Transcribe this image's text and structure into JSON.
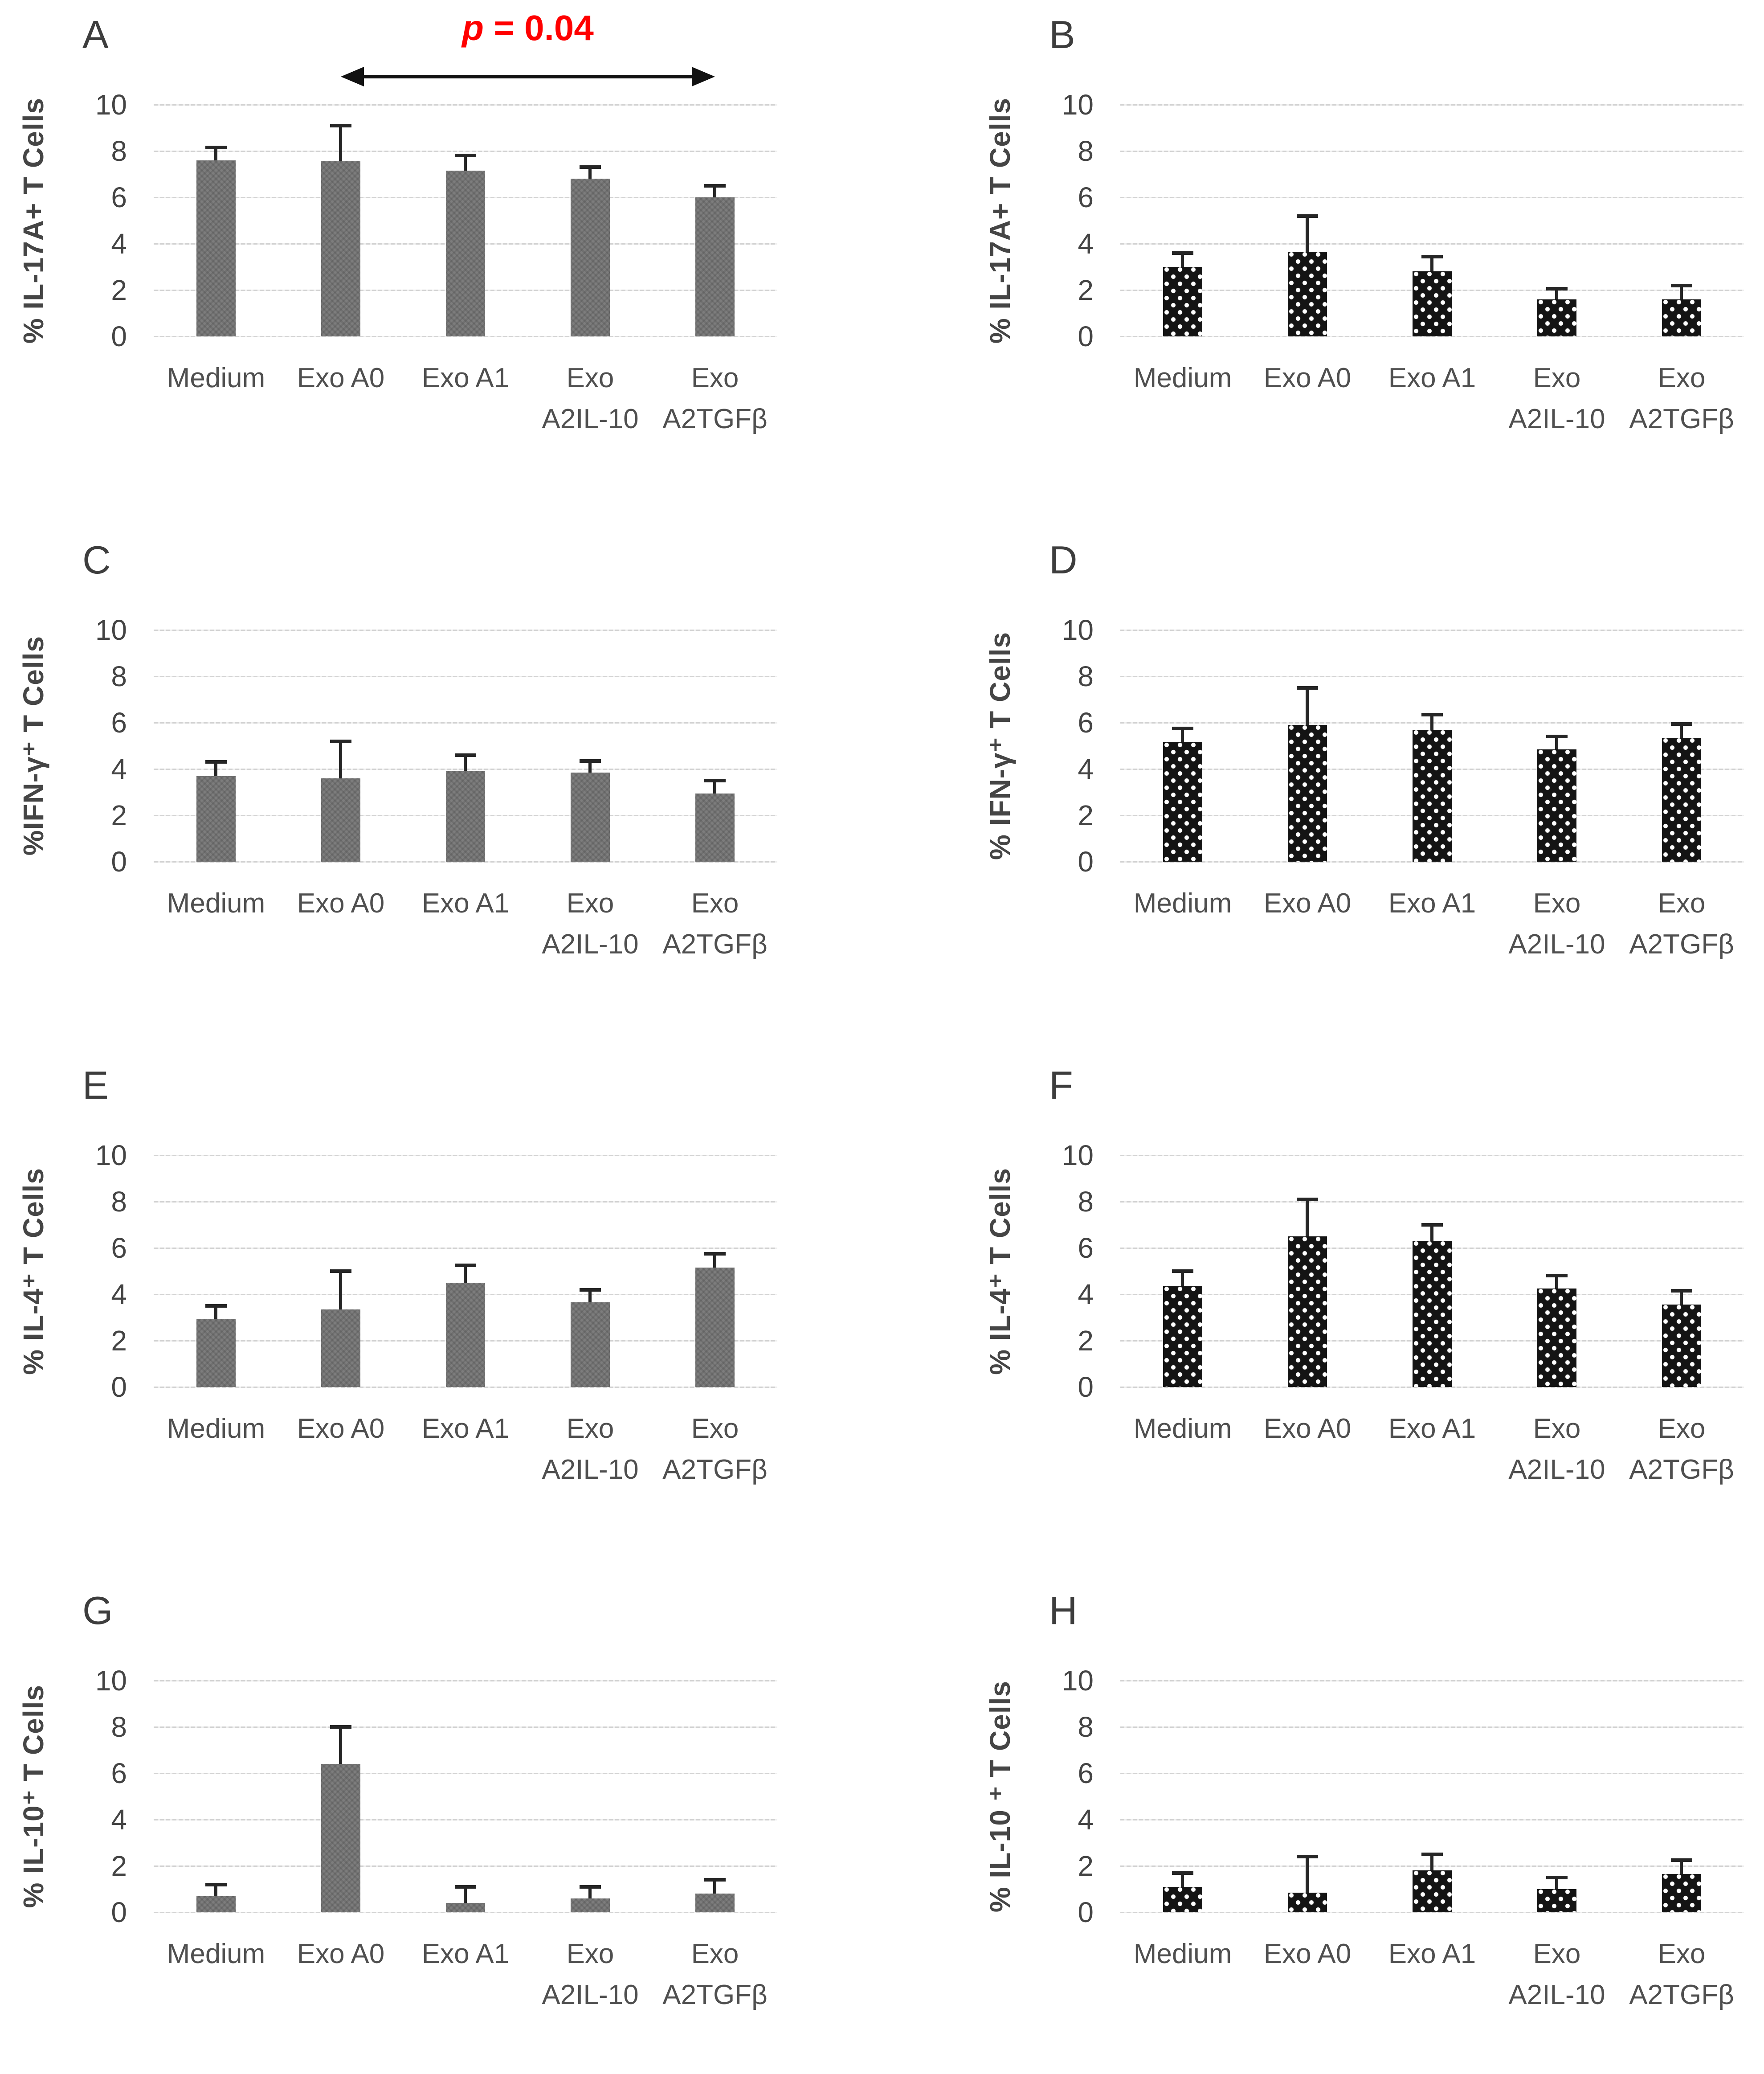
{
  "figure": {
    "background": "#ffffff",
    "colors": {
      "gray_bar": "#7d7d7d",
      "black_bar": "#141414",
      "dot": "#ffffff",
      "gridline": "#d3d3d3",
      "axis_text": "#444444",
      "category_text": "#4f4f4f",
      "panel_letter": "#3d3d3d",
      "error_bar": "#262626",
      "annotation_red": "#ff0000"
    }
  },
  "chart_data": [
    {
      "panel": "A",
      "type": "bar",
      "bar_style": "gray-textured",
      "ylabel": "% IL-17A+ T Cells",
      "ylim": [
        0,
        10
      ],
      "yticks": [
        0,
        2,
        4,
        6,
        8,
        10
      ],
      "grid": true,
      "categories": [
        "Medium",
        "Exo A0",
        "Exo A1",
        "Exo A2IL-10",
        "Exo A2TGFβ"
      ],
      "categories_display": [
        [
          "Medium"
        ],
        [
          "Exo A0"
        ],
        [
          "Exo A1"
        ],
        [
          "Exo",
          "A2IL-10"
        ],
        [
          "Exo",
          "A2TGFβ"
        ]
      ],
      "values": [
        7.6,
        7.55,
        7.15,
        6.8,
        6.0
      ],
      "errors": [
        0.55,
        1.55,
        0.65,
        0.5,
        0.5
      ],
      "annotation": {
        "text_italic": "p",
        "text_rest": " = 0.04",
        "color": "#ff0000",
        "from_index": 1,
        "to_index": 4
      }
    },
    {
      "panel": "B",
      "type": "bar",
      "bar_style": "black-dotted",
      "ylabel": "% IL-17A+ T Cells",
      "ylim": [
        0,
        10
      ],
      "yticks": [
        0,
        2,
        4,
        6,
        8,
        10
      ],
      "grid": true,
      "categories": [
        "Medium",
        "Exo A0",
        "Exo A1",
        "Exo A2IL-10",
        "Exo A2TGFβ"
      ],
      "categories_display": [
        [
          "Medium"
        ],
        [
          "Exo A0"
        ],
        [
          "Exo A1"
        ],
        [
          "Exo",
          "A2IL-10"
        ],
        [
          "Exo",
          "A2TGFβ"
        ]
      ],
      "values": [
        3.0,
        3.65,
        2.8,
        1.6,
        1.6
      ],
      "errors": [
        0.6,
        1.55,
        0.65,
        0.45,
        0.6
      ]
    },
    {
      "panel": "C",
      "type": "bar",
      "bar_style": "gray-textured",
      "ylabel": "%IFN-γ⁺ T Cells",
      "ylim": [
        0,
        10
      ],
      "yticks": [
        0,
        2,
        4,
        6,
        8,
        10
      ],
      "grid": true,
      "categories": [
        "Medium",
        "Exo A0",
        "Exo A1",
        "Exo A2IL-10",
        "Exo A2TGFβ"
      ],
      "categories_display": [
        [
          "Medium"
        ],
        [
          "Exo A0"
        ],
        [
          "Exo A1"
        ],
        [
          "Exo",
          "A2IL-10"
        ],
        [
          "Exo",
          "A2TGFβ"
        ]
      ],
      "values": [
        3.7,
        3.6,
        3.9,
        3.85,
        2.95
      ],
      "errors": [
        0.6,
        1.6,
        0.7,
        0.5,
        0.55
      ]
    },
    {
      "panel": "D",
      "type": "bar",
      "bar_style": "black-dotted",
      "ylabel": "% IFN-γ⁺ T Cells",
      "ylim": [
        0,
        10
      ],
      "yticks": [
        0,
        2,
        4,
        6,
        8,
        10
      ],
      "grid": true,
      "categories": [
        "Medium",
        "Exo A0",
        "Exo A1",
        "Exo A2IL-10",
        "Exo A2TGFβ"
      ],
      "categories_display": [
        [
          "Medium"
        ],
        [
          "Exo A0"
        ],
        [
          "Exo A1"
        ],
        [
          "Exo",
          "A2IL-10"
        ],
        [
          "Exo",
          "A2TGFβ"
        ]
      ],
      "values": [
        5.15,
        5.9,
        5.7,
        4.85,
        5.35
      ],
      "errors": [
        0.6,
        1.6,
        0.65,
        0.55,
        0.6
      ]
    },
    {
      "panel": "E",
      "type": "bar",
      "bar_style": "gray-textured",
      "ylabel": "% IL-4⁺ T Cells",
      "ylim": [
        0,
        10
      ],
      "yticks": [
        0,
        2,
        4,
        6,
        8,
        10
      ],
      "grid": true,
      "categories": [
        "Medium",
        "Exo A0",
        "Exo A1",
        "Exo A2IL-10",
        "Exo A2TGFβ"
      ],
      "categories_display": [
        [
          "Medium"
        ],
        [
          "Exo A0"
        ],
        [
          "Exo A1"
        ],
        [
          "Exo",
          "A2IL-10"
        ],
        [
          "Exo",
          "A2TGFβ"
        ]
      ],
      "values": [
        2.95,
        3.35,
        4.5,
        3.65,
        5.15
      ],
      "errors": [
        0.55,
        1.65,
        0.75,
        0.55,
        0.6
      ]
    },
    {
      "panel": "F",
      "type": "bar",
      "bar_style": "black-dotted",
      "ylabel": "% IL-4⁺ T Cells",
      "ylim": [
        0,
        10
      ],
      "yticks": [
        0,
        2,
        4,
        6,
        8,
        10
      ],
      "grid": true,
      "categories": [
        "Medium",
        "Exo A0",
        "Exo A1",
        "Exo A2IL-10",
        "Exo A2TGFβ"
      ],
      "categories_display": [
        [
          "Medium"
        ],
        [
          "Exo A0"
        ],
        [
          "Exo A1"
        ],
        [
          "Exo",
          "A2IL-10"
        ],
        [
          "Exo",
          "A2TGFβ"
        ]
      ],
      "values": [
        4.35,
        6.5,
        6.3,
        4.25,
        3.55
      ],
      "errors": [
        0.65,
        1.6,
        0.7,
        0.55,
        0.6
      ]
    },
    {
      "panel": "G",
      "type": "bar",
      "bar_style": "gray-textured",
      "ylabel": "% IL-10⁺ T Cells",
      "ylim": [
        0,
        10
      ],
      "yticks": [
        0,
        2,
        4,
        6,
        8,
        10
      ],
      "grid": true,
      "categories": [
        "Medium",
        "Exo A0",
        "Exo A1",
        "Exo A2IL-10",
        "Exo A2TGFβ"
      ],
      "categories_display": [
        [
          "Medium"
        ],
        [
          "Exo A0"
        ],
        [
          "Exo A1"
        ],
        [
          "Exo",
          "A2IL-10"
        ],
        [
          "Exo",
          "A2TGFβ"
        ]
      ],
      "values": [
        0.7,
        6.4,
        0.4,
        0.6,
        0.8
      ],
      "errors": [
        0.5,
        1.6,
        0.7,
        0.5,
        0.6
      ]
    },
    {
      "panel": "H",
      "type": "bar",
      "bar_style": "black-dotted",
      "ylabel": "% IL-10 ⁺ T Cells",
      "ylim": [
        0,
        10
      ],
      "yticks": [
        0,
        2,
        4,
        6,
        8,
        10
      ],
      "grid": true,
      "categories": [
        "Medium",
        "Exo A0",
        "Exo A1",
        "Exo A2IL-10",
        "Exo A2TGFβ"
      ],
      "categories_display": [
        [
          "Medium"
        ],
        [
          "Exo A0"
        ],
        [
          "Exo A1"
        ],
        [
          "Exo",
          "A2IL-10"
        ],
        [
          "Exo",
          "A2TGFβ"
        ]
      ],
      "values": [
        1.1,
        0.85,
        1.8,
        1.0,
        1.65
      ],
      "errors": [
        0.6,
        1.55,
        0.7,
        0.5,
        0.6
      ]
    }
  ]
}
